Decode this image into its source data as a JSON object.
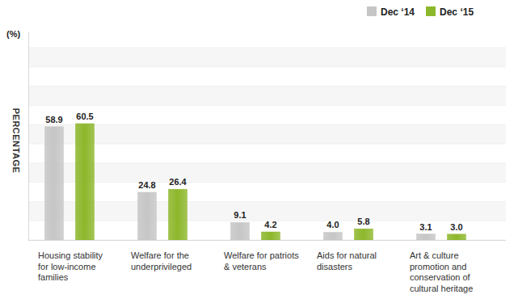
{
  "chart_data": {
    "type": "bar",
    "y_label": "PERCENTAGE",
    "y_unit_label": "(%)",
    "categories": [
      "Housing stability\nfor low-income\nfamilies",
      "Welfare for the\nunderprivileged",
      "Welfare for patriots\n& veterans",
      "Aids for natural\ndisasters",
      "Art & culture\npromotion and\nconservation of\ncultural heritage"
    ],
    "series": [
      {
        "name": "Dec ‘14",
        "color": "#c6c6c6",
        "values": [
          58.9,
          24.8,
          9.1,
          4.0,
          3.1
        ],
        "value_labels": [
          "58.9",
          "24.8",
          "9.1",
          "4.0",
          "3.1"
        ]
      },
      {
        "name": "Dec ‘15",
        "color": "#8db72b",
        "values": [
          60.5,
          26.4,
          4.2,
          5.8,
          3.0
        ],
        "value_labels": [
          "60.5",
          "26.4",
          "4.2",
          "5.8",
          "3.0"
        ]
      }
    ],
    "ylim": [
      0,
      100
    ],
    "yticks": [
      0,
      10,
      20,
      30,
      40,
      50,
      60,
      70,
      80,
      90,
      100
    ],
    "grid": true,
    "legend": "top-right",
    "data_labels": true,
    "tick_labels": "x"
  }
}
